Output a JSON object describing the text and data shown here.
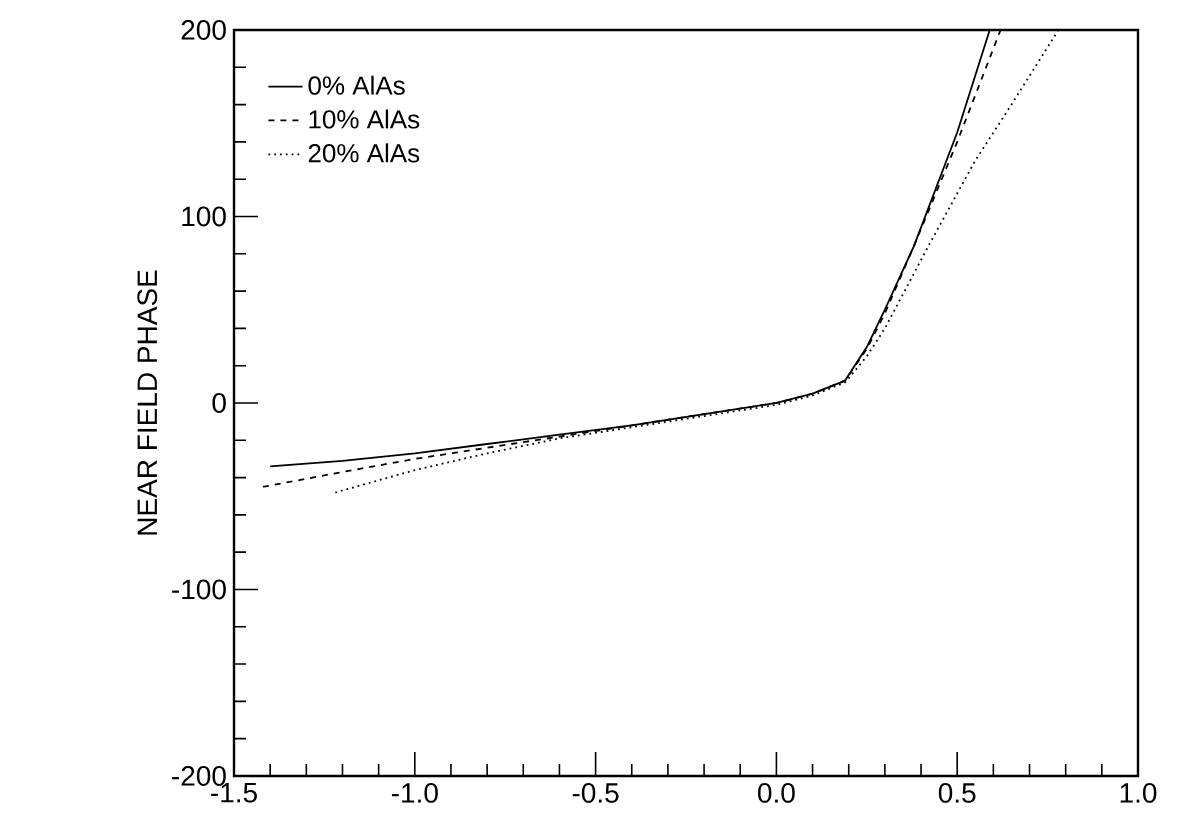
{
  "chart_data": {
    "type": "line",
    "ylabel": "NEAR FIELD PHASE",
    "xlim": [
      -1.5,
      1.0
    ],
    "ylim": [
      -200,
      200
    ],
    "xticks": [
      {
        "value": -1.5,
        "label": "-1.5"
      },
      {
        "value": -1.0,
        "label": "-1.0"
      },
      {
        "value": -0.5,
        "label": "-0.5"
      },
      {
        "value": 0.0,
        "label": "0.0"
      },
      {
        "value": 0.5,
        "label": "0.5"
      },
      {
        "value": 1.0,
        "label": "1.0"
      }
    ],
    "yticks": [
      -200,
      -100,
      0,
      100,
      200
    ],
    "legend": "top left",
    "grid": false,
    "series": [
      {
        "name": "0% AlAs",
        "color": "#000000",
        "line_style": "solid",
        "x": [
          -1.4,
          -1.2,
          -1.0,
          -0.8,
          -0.6,
          -0.4,
          -0.2,
          0.0,
          0.1,
          0.19,
          0.25,
          0.3,
          0.38,
          0.5,
          0.59
        ],
        "values": [
          -34,
          -31,
          -27,
          -22,
          -17,
          -12,
          -6,
          0,
          5,
          12,
          30,
          50,
          84,
          145,
          200
        ]
      },
      {
        "name": "10% AlAs",
        "color": "#000000",
        "line_style": "dashed",
        "x": [
          -1.42,
          -1.2,
          -1.0,
          -0.8,
          -0.6,
          -0.4,
          -0.2,
          0.0,
          0.1,
          0.19,
          0.25,
          0.3,
          0.38,
          0.5,
          0.62
        ],
        "values": [
          -45,
          -37,
          -30,
          -24,
          -18,
          -12,
          -6,
          0,
          5,
          12,
          29,
          48,
          84,
          140,
          200
        ]
      },
      {
        "name": "20% AlAs",
        "color": "#000000",
        "line_style": "dotted",
        "x": [
          -1.22,
          -1.0,
          -0.8,
          -0.6,
          -0.4,
          -0.2,
          0.0,
          0.1,
          0.19,
          0.25,
          0.3,
          0.42,
          0.55,
          0.65,
          0.78
        ],
        "values": [
          -48,
          -36,
          -27,
          -19,
          -13,
          -7,
          -1,
          4,
          11,
          25,
          40,
          84,
          130,
          160,
          200
        ]
      }
    ]
  }
}
